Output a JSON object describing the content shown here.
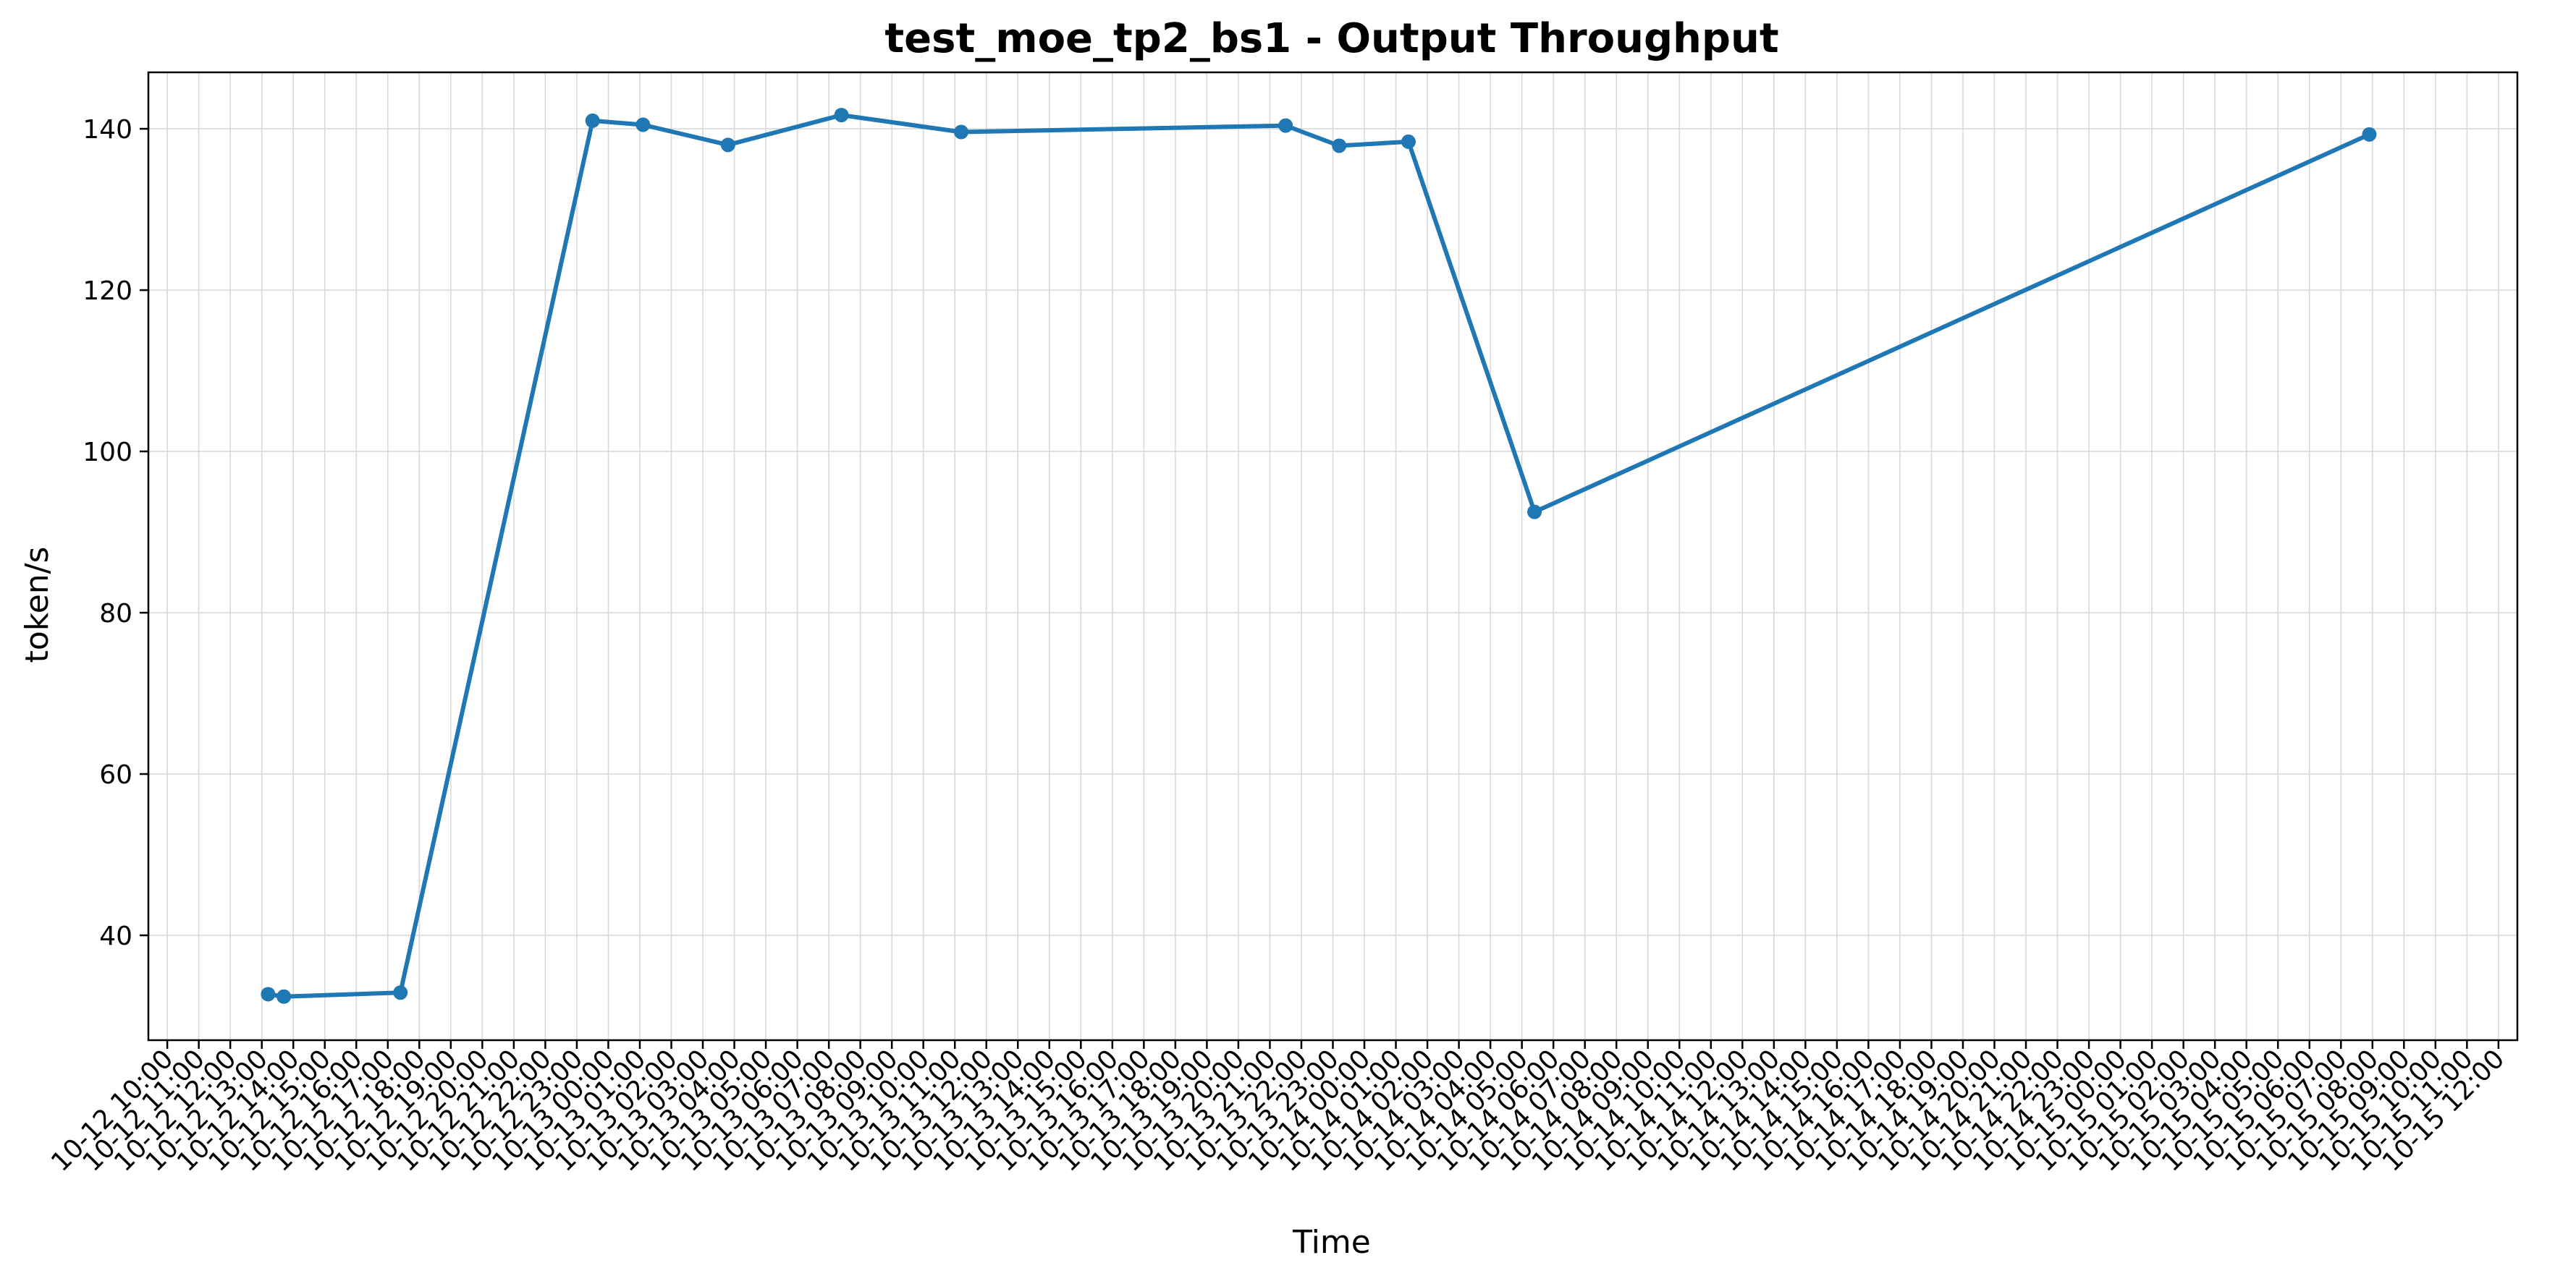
{
  "chart_data": {
    "type": "line",
    "title": "test_moe_tp2_bs1 - Output Throughput",
    "xlabel": "Time",
    "ylabel": "token/s",
    "ylim": [
      27,
      147
    ],
    "yticks": [
      40,
      60,
      80,
      100,
      120,
      140
    ],
    "grid": true,
    "legend": "none",
    "colors": {
      "line": "#1f77b4",
      "grid": "#d9d9d9",
      "axis": "#000000"
    },
    "xlim": [
      "10-12 09:24",
      "10-15 12:36"
    ],
    "xticks": [
      "10-12 10:00",
      "10-12 11:00",
      "10-12 12:00",
      "10-12 13:00",
      "10-12 14:00",
      "10-12 15:00",
      "10-12 16:00",
      "10-12 17:00",
      "10-12 18:00",
      "10-12 19:00",
      "10-12 20:00",
      "10-12 21:00",
      "10-12 22:00",
      "10-12 23:00",
      "10-13 00:00",
      "10-13 01:00",
      "10-13 02:00",
      "10-13 03:00",
      "10-13 04:00",
      "10-13 05:00",
      "10-13 06:00",
      "10-13 07:00",
      "10-13 08:00",
      "10-13 09:00",
      "10-13 10:00",
      "10-13 11:00",
      "10-13 12:00",
      "10-13 13:00",
      "10-13 14:00",
      "10-13 15:00",
      "10-13 16:00",
      "10-13 17:00",
      "10-13 18:00",
      "10-13 19:00",
      "10-13 20:00",
      "10-13 21:00",
      "10-13 22:00",
      "10-13 23:00",
      "10-14 00:00",
      "10-14 01:00",
      "10-14 02:00",
      "10-14 03:00",
      "10-14 04:00",
      "10-14 05:00",
      "10-14 06:00",
      "10-14 07:00",
      "10-14 08:00",
      "10-14 09:00",
      "10-14 10:00",
      "10-14 11:00",
      "10-14 12:00",
      "10-14 13:00",
      "10-14 14:00",
      "10-14 15:00",
      "10-14 16:00",
      "10-14 17:00",
      "10-14 18:00",
      "10-14 19:00",
      "10-14 20:00",
      "10-14 21:00",
      "10-14 22:00",
      "10-14 23:00",
      "10-15 00:00",
      "10-15 01:00",
      "10-15 02:00",
      "10-15 03:00",
      "10-15 04:00",
      "10-15 05:00",
      "10-15 06:00",
      "10-15 07:00",
      "10-15 08:00",
      "10-15 09:00",
      "10-15 10:00",
      "10-15 11:00",
      "10-15 12:00"
    ],
    "series": [
      {
        "points": [
          {
            "x": "10-12 13:12",
            "y": 32.7
          },
          {
            "x": "10-12 13:42",
            "y": 32.4
          },
          {
            "x": "10-12 17:24",
            "y": 32.9
          },
          {
            "x": "10-12 23:30",
            "y": 141.0
          },
          {
            "x": "10-13 01:06",
            "y": 140.5
          },
          {
            "x": "10-13 03:48",
            "y": 138.0
          },
          {
            "x": "10-13 07:24",
            "y": 141.7
          },
          {
            "x": "10-13 11:12",
            "y": 139.6
          },
          {
            "x": "10-13 21:30",
            "y": 140.4
          },
          {
            "x": "10-13 23:12",
            "y": 137.9
          },
          {
            "x": "10-14 01:24",
            "y": 138.4
          },
          {
            "x": "10-14 05:24",
            "y": 92.5
          },
          {
            "x": "10-15 07:54",
            "y": 139.3
          }
        ]
      }
    ]
  }
}
